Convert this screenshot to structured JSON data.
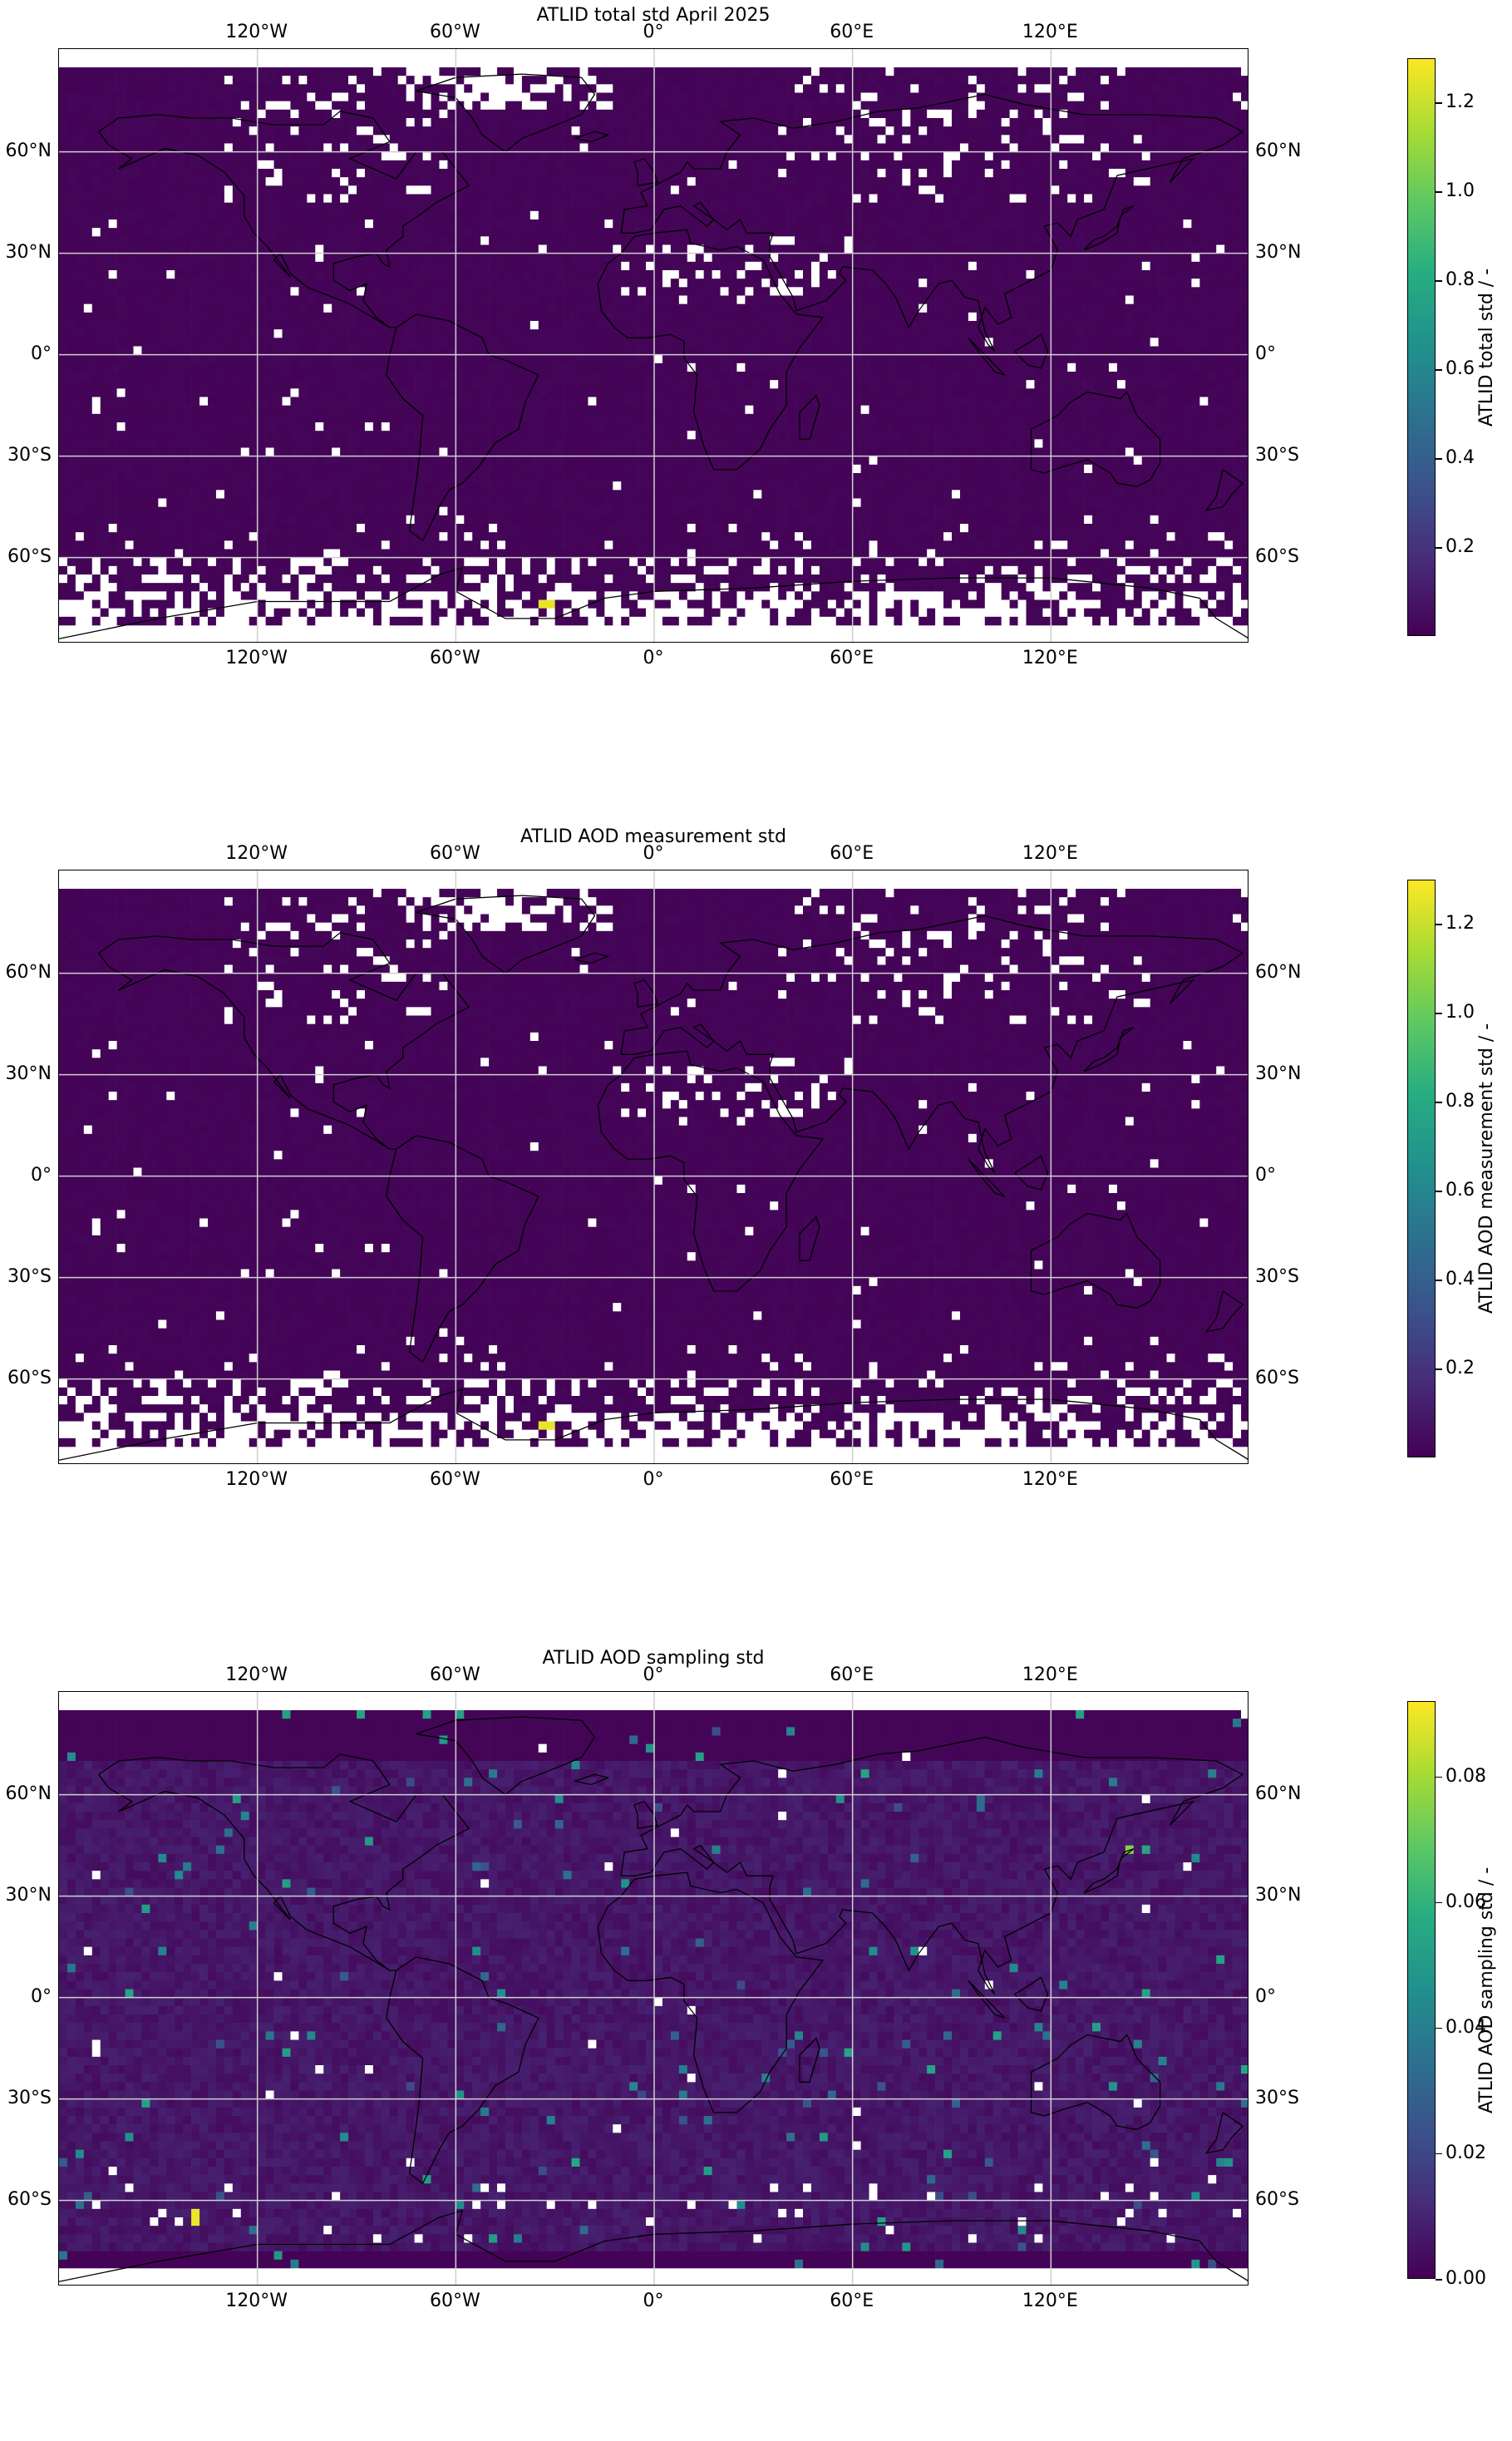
{
  "figure": {
    "panels": [
      {
        "id": "total",
        "title": "ATLID total std April 2025",
        "colorbar_label": "ATLID total std / -",
        "colorbar_ticks": [
          "0.2",
          "0.4",
          "0.6",
          "0.8",
          "1.0",
          "1.2"
        ],
        "colorbar_range": [
          0.0,
          1.3
        ]
      },
      {
        "id": "measurement",
        "title": "ATLID AOD measurement std",
        "colorbar_label": "ATLID AOD measurement std / -",
        "colorbar_ticks": [
          "0.2",
          "0.4",
          "0.6",
          "0.8",
          "1.0",
          "1.2"
        ],
        "colorbar_range": [
          0.0,
          1.3
        ]
      },
      {
        "id": "sampling",
        "title": "ATLID AOD sampling std",
        "colorbar_label": "ATLID AOD sampling std / -",
        "colorbar_ticks": [
          "0.00",
          "0.02",
          "0.04",
          "0.06",
          "0.08"
        ],
        "colorbar_range": [
          0.0,
          0.092
        ]
      }
    ],
    "lon_ticks": [
      "120°W",
      "60°W",
      "0°",
      "60°E",
      "120°E"
    ],
    "lat_ticks": [
      "60°N",
      "30°N",
      "0°",
      "30°S",
      "60°S"
    ],
    "colormap": "viridis",
    "colors": {
      "min": "#440154",
      "low": "#3b0f70",
      "mid": "#21908d",
      "high": "#fde725",
      "missing": "#ffffff"
    }
  },
  "chart_data": [
    {
      "type": "heatmap",
      "title": "ATLID total std April 2025",
      "xlabel": "",
      "ylabel": "",
      "x_ticks": [
        -120,
        -60,
        0,
        60,
        120
      ],
      "y_ticks": [
        60,
        30,
        0,
        -30,
        -60
      ],
      "xlim": [
        -180,
        180
      ],
      "ylim": [
        -90,
        90
      ],
      "value_range": [
        0.0,
        1.3
      ],
      "grid": true,
      "description_values": {
        "typical": 0.01,
        "max": 1.28,
        "max_location": [
          -33,
          -74
        ]
      }
    },
    {
      "type": "heatmap",
      "title": "ATLID AOD measurement std",
      "xlabel": "",
      "ylabel": "",
      "x_ticks": [
        -120,
        -60,
        0,
        60,
        120
      ],
      "y_ticks": [
        60,
        30,
        0,
        -30,
        -60
      ],
      "xlim": [
        -180,
        180
      ],
      "ylim": [
        -90,
        90
      ],
      "value_range": [
        0.0,
        1.3
      ],
      "grid": true,
      "description_values": {
        "typical": 0.01,
        "max": 1.28,
        "max_location": [
          -33,
          -74
        ]
      }
    },
    {
      "type": "heatmap",
      "title": "ATLID AOD sampling std",
      "xlabel": "",
      "ylabel": "",
      "x_ticks": [
        -120,
        -60,
        0,
        60,
        120
      ],
      "y_ticks": [
        60,
        30,
        0,
        -30,
        -60
      ],
      "xlim": [
        -180,
        180
      ],
      "ylim": [
        -90,
        90
      ],
      "value_range": [
        0.0,
        0.092
      ],
      "grid": true,
      "description_values": {
        "typical": 0.008,
        "max": 0.09,
        "max_location": [
          -139,
          -65
        ]
      }
    }
  ]
}
